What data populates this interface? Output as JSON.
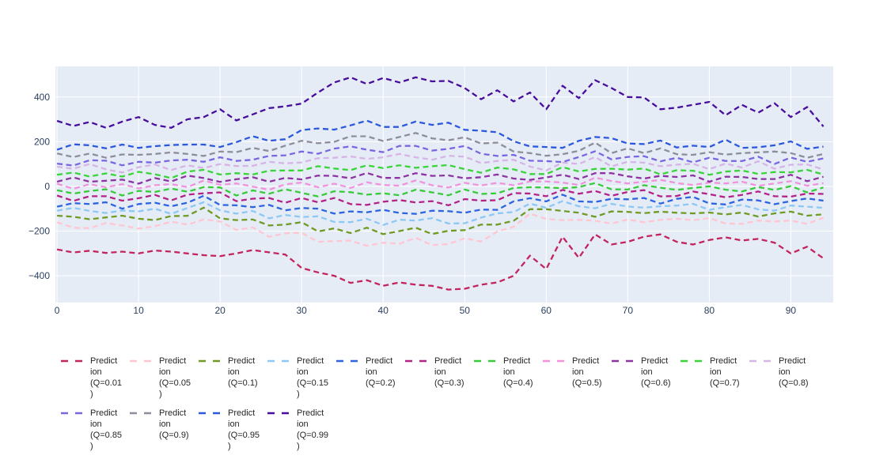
{
  "figure": {
    "background": "#ffffff",
    "plot_bgcolor": "#e5ecf6",
    "grid_color": "#ffffff",
    "tick_color": "#2a3f5f",
    "axes": {
      "x": {
        "range": [
          -0.2,
          95.2
        ],
        "tick_values": [
          0,
          10,
          20,
          30,
          40,
          50,
          60,
          70,
          80,
          90
        ],
        "tick_labels": [
          "0",
          "10",
          "20",
          "30",
          "40",
          "50",
          "60",
          "70",
          "80",
          "90"
        ],
        "grid": true
      },
      "y": {
        "range": [
          -520,
          537
        ],
        "tick_values": [
          400,
          200,
          0,
          -200,
          -400
        ],
        "tick_labels": [
          "400",
          "200",
          "0",
          "−200",
          "−400"
        ],
        "grid": true
      }
    }
  },
  "chart_data": {
    "type": "line",
    "line_style": "dash",
    "legend_position": "bottom",
    "x": [
      0,
      2,
      4,
      6,
      8,
      10,
      12,
      14,
      16,
      18,
      20,
      22,
      24,
      26,
      28,
      30,
      32,
      34,
      36,
      38,
      40,
      42,
      44,
      46,
      48,
      50,
      52,
      54,
      56,
      58,
      60,
      62,
      64,
      66,
      68,
      70,
      72,
      74,
      76,
      78,
      80,
      82,
      84,
      86,
      88,
      90,
      92,
      94
    ],
    "series": [
      {
        "name": "Prediction (Q=0.01)",
        "quantile": 0.01,
        "color": "#c3245e",
        "legend_lines": [
          "Predict",
          "ion",
          "(Q=0.01",
          ")"
        ],
        "values": [
          -282,
          -296,
          -288,
          -298,
          -292,
          -300,
          -287,
          -292,
          -300,
          -308,
          -312,
          -300,
          -285,
          -295,
          -305,
          -365,
          -385,
          -400,
          -432,
          -420,
          -445,
          -430,
          -440,
          -445,
          -462,
          -458,
          -440,
          -430,
          -400,
          -310,
          -370,
          -225,
          -320,
          -215,
          -260,
          -248,
          -225,
          -215,
          -248,
          -260,
          -240,
          -228,
          -242,
          -235,
          -252,
          -300,
          -270,
          -322
        ]
      },
      {
        "name": "Prediction (Q=0.05)",
        "quantile": 0.05,
        "color": "#ffc6d2",
        "legend_lines": [
          "Predict",
          "ion",
          "(Q=0.05",
          ")"
        ],
        "values": [
          -161,
          -185,
          -187,
          -164,
          -175,
          -189,
          -178,
          -158,
          -171,
          -148,
          -157,
          -195,
          -183,
          -226,
          -210,
          -208,
          -248,
          -245,
          -243,
          -266,
          -252,
          -257,
          -230,
          -263,
          -258,
          -232,
          -247,
          -202,
          -181,
          -122,
          -146,
          -151,
          -150,
          -154,
          -166,
          -148,
          -161,
          -150,
          -145,
          -151,
          -142,
          -166,
          -168,
          -153,
          -157,
          -153,
          -168,
          -140
        ]
      },
      {
        "name": "Prediction (Q=0.1)",
        "quantile": 0.1,
        "color": "#6f9b25",
        "legend_lines": [
          "Predict",
          "ion",
          "(Q=0.1)"
        ],
        "values": [
          -131,
          -136,
          -147,
          -139,
          -131,
          -145,
          -151,
          -133,
          -132,
          -95,
          -143,
          -151,
          -148,
          -175,
          -171,
          -160,
          -202,
          -188,
          -209,
          -185,
          -214,
          -200,
          -185,
          -213,
          -199,
          -196,
          -171,
          -171,
          -154,
          -102,
          -102,
          -110,
          -118,
          -136,
          -112,
          -114,
          -120,
          -113,
          -118,
          -121,
          -117,
          -126,
          -117,
          -135,
          -121,
          -113,
          -131,
          -125
        ]
      },
      {
        "name": "Prediction (Q=0.15)",
        "quantile": 0.15,
        "color": "#8cc8f4",
        "legend_lines": [
          "Predict",
          "ion",
          "(Q=0.15",
          ")"
        ],
        "values": [
          -109,
          -96,
          -110,
          -119,
          -108,
          -112,
          -100,
          -123,
          -97,
          -71,
          -107,
          -122,
          -110,
          -143,
          -128,
          -137,
          -134,
          -159,
          -160,
          -145,
          -173,
          -149,
          -153,
          -142,
          -166,
          -165,
          -140,
          -121,
          -115,
          -77,
          -96,
          -66,
          -89,
          -98,
          -78,
          -90,
          -95,
          -89,
          -86,
          -78,
          -105,
          -93,
          -83,
          -103,
          -109,
          -86,
          -91,
          -96
        ]
      },
      {
        "name": "Prediction (Q=0.2)",
        "quantile": 0.2,
        "color": "#2d64df",
        "legend_lines": [
          "Predict",
          "ion",
          "(Q=0.2)"
        ],
        "values": [
          -91,
          -75,
          -79,
          -71,
          -100,
          -79,
          -73,
          -89,
          -73,
          -42,
          -83,
          -85,
          -93,
          -83,
          -107,
          -97,
          -100,
          -122,
          -112,
          -116,
          -105,
          -119,
          -123,
          -109,
          -111,
          -118,
          -104,
          -105,
          -67,
          -53,
          -67,
          -37,
          -67,
          -70,
          -56,
          -58,
          -52,
          -77,
          -56,
          -47,
          -76,
          -81,
          -59,
          -63,
          -80,
          -66,
          -54,
          -64
        ]
      },
      {
        "name": "Prediction (Q=0.3)",
        "quantile": 0.3,
        "color": "#b42287",
        "legend_lines": [
          "Predict",
          "ion",
          "(Q=0.3)"
        ],
        "values": [
          -41,
          -65,
          -44,
          -44,
          -64,
          -53,
          -38,
          -63,
          -37,
          -31,
          -27,
          -66,
          -55,
          -52,
          -73,
          -52,
          -71,
          -52,
          -79,
          -83,
          -69,
          -61,
          -72,
          -66,
          -85,
          -57,
          -64,
          -62,
          -30,
          -32,
          -44,
          -16,
          -33,
          -21,
          -42,
          -25,
          -17,
          -45,
          -43,
          -23,
          -35,
          -49,
          -38,
          -23,
          -44,
          -46,
          -32,
          -34
        ]
      },
      {
        "name": "Prediction (Q=0.4)",
        "quantile": 0.4,
        "color": "#37cb3a",
        "legend_lines": [
          "Predict",
          "ion",
          "(Q=0.4)"
        ],
        "values": [
          -17,
          -32,
          -21,
          -13,
          -41,
          -20,
          -25,
          -10,
          -24,
          -3,
          -5,
          -41,
          -18,
          -33,
          -13,
          -29,
          -45,
          -22,
          -26,
          -37,
          -31,
          -40,
          -15,
          -27,
          -40,
          -14,
          -34,
          -31,
          -7,
          -4,
          -5,
          -8,
          -3,
          15,
          -13,
          -14,
          5,
          -6,
          -16,
          -7,
          0,
          -15,
          -23,
          -3,
          -16,
          1,
          -27,
          -5
        ]
      },
      {
        "name": "Prediction (Q=0.5)",
        "quantile": 0.5,
        "color": "#f193dc",
        "legend_lines": [
          "Predict",
          "ion",
          "(Q=0.5)"
        ],
        "values": [
          12,
          -11,
          10,
          -4,
          10,
          -9,
          5,
          10,
          -3,
          26,
          7,
          13,
          -1,
          -15,
          9,
          17,
          -4,
          12,
          -7,
          18,
          6,
          3,
          27,
          5,
          -5,
          16,
          4,
          16,
          5,
          22,
          22,
          17,
          6,
          39,
          24,
          13,
          21,
          29,
          15,
          6,
          17,
          13,
          21,
          2,
          13,
          23,
          3,
          14
        ]
      },
      {
        "name": "Prediction (Q=0.6)",
        "quantile": 0.6,
        "color": "#8f32a3",
        "legend_lines": [
          "Predict",
          "ion",
          "(Q=0.6)"
        ],
        "values": [
          21,
          40,
          21,
          25,
          30,
          12,
          37,
          22,
          48,
          37,
          20,
          32,
          41,
          21,
          38,
          31,
          48,
          47,
          36,
          60,
          38,
          38,
          59,
          47,
          49,
          36,
          41,
          53,
          35,
          29,
          40,
          52,
          33,
          59,
          59,
          45,
          35,
          47,
          42,
          49,
          21,
          43,
          42,
          33,
          33,
          52,
          23,
          43
        ]
      },
      {
        "name": "Prediction (Q=0.7)",
        "quantile": 0.7,
        "color": "#38d438",
        "legend_lines": [
          "Predict",
          "ion",
          "(Q=0.7)"
        ],
        "values": [
          52,
          62,
          44,
          58,
          44,
          65,
          54,
          37,
          66,
          74,
          53,
          59,
          53,
          70,
          71,
          71,
          90,
          80,
          73,
          94,
          82,
          94,
          83,
          90,
          95,
          77,
          61,
          84,
          76,
          55,
          55,
          86,
          67,
          78,
          79,
          75,
          80,
          54,
          72,
          70,
          52,
          66,
          71,
          56,
          64,
          63,
          74,
          53
        ]
      },
      {
        "name": "Prediction (Q=0.8)",
        "quantile": 0.8,
        "color": "#d7b3e6",
        "legend_lines": [
          "Predict",
          "ion",
          "(Q=0.8)"
        ],
        "values": [
          88,
          79,
          100,
          76,
          62,
          86,
          98,
          73,
          94,
          82,
          100,
          91,
          92,
          110,
          103,
          107,
          126,
          128,
          134,
          123,
          130,
          145,
          130,
          119,
          137,
          133,
          104,
          114,
          119,
          89,
          71,
          106,
          100,
          131,
          89,
          110,
          106,
          90,
          97,
          101,
          77,
          102,
          84,
          112,
          79,
          97,
          98,
          76
        ]
      },
      {
        "name": "Prediction (Q=0.85)",
        "quantile": 0.85,
        "color": "#7b66e2",
        "legend_lines": [
          "Predict",
          "ion",
          "(Q=0.85",
          ")"
        ],
        "values": [
          102,
          93,
          117,
          115,
          94,
          110,
          106,
          116,
          119,
          110,
          130,
          114,
          119,
          136,
          139,
          156,
          146,
          169,
          179,
          164,
          153,
          181,
          181,
          160,
          168,
          181,
          146,
          136,
          141,
          115,
          113,
          109,
          131,
          157,
          121,
          132,
          135,
          112,
          128,
          108,
          128,
          114,
          113,
          133,
          100,
          129,
          110,
          125
        ]
      },
      {
        "name": "Prediction (Q=0.9)",
        "quantile": 0.9,
        "color": "#8e8e9b",
        "legend_lines": [
          "Predict",
          "ion",
          "(Q=0.9)"
        ],
        "values": [
          147,
          131,
          147,
          128,
          143,
          141,
          145,
          152,
          145,
          136,
          156,
          153,
          172,
          158,
          182,
          204,
          193,
          199,
          224,
          224,
          203,
          221,
          239,
          215,
          206,
          220,
          192,
          196,
          156,
          149,
          137,
          144,
          159,
          196,
          149,
          170,
          149,
          170,
          144,
          141,
          153,
          142,
          149,
          152,
          156,
          149,
          128,
          145
        ]
      },
      {
        "name": "Prediction (Q=0.95)",
        "quantile": 0.95,
        "color": "#2c58de",
        "legend_lines": [
          "Predict",
          "ion",
          "(Q=0.95",
          ")"
        ],
        "values": [
          164,
          188,
          184,
          170,
          187,
          172,
          180,
          185,
          187,
          187,
          176,
          198,
          224,
          204,
          211,
          252,
          259,
          254,
          273,
          294,
          266,
          266,
          290,
          275,
          285,
          253,
          249,
          242,
          202,
          179,
          176,
          172,
          204,
          221,
          216,
          192,
          189,
          205,
          174,
          182,
          176,
          209,
          172,
          175,
          184,
          201,
          168,
          178
        ]
      },
      {
        "name": "Prediction (Q=0.99)",
        "quantile": 0.99,
        "color": "#470d9c",
        "legend_lines": [
          "Predict",
          "ion",
          "(Q=0.99",
          ")"
        ],
        "values": [
          293,
          270,
          288,
          262,
          290,
          310,
          275,
          262,
          300,
          310,
          345,
          295,
          322,
          350,
          358,
          370,
          420,
          465,
          488,
          458,
          485,
          465,
          488,
          470,
          472,
          440,
          390,
          430,
          380,
          420,
          345,
          450,
          395,
          475,
          440,
          400,
          398,
          345,
          352,
          365,
          378,
          318,
          365,
          330,
          372,
          310,
          355,
          268
        ]
      }
    ]
  }
}
